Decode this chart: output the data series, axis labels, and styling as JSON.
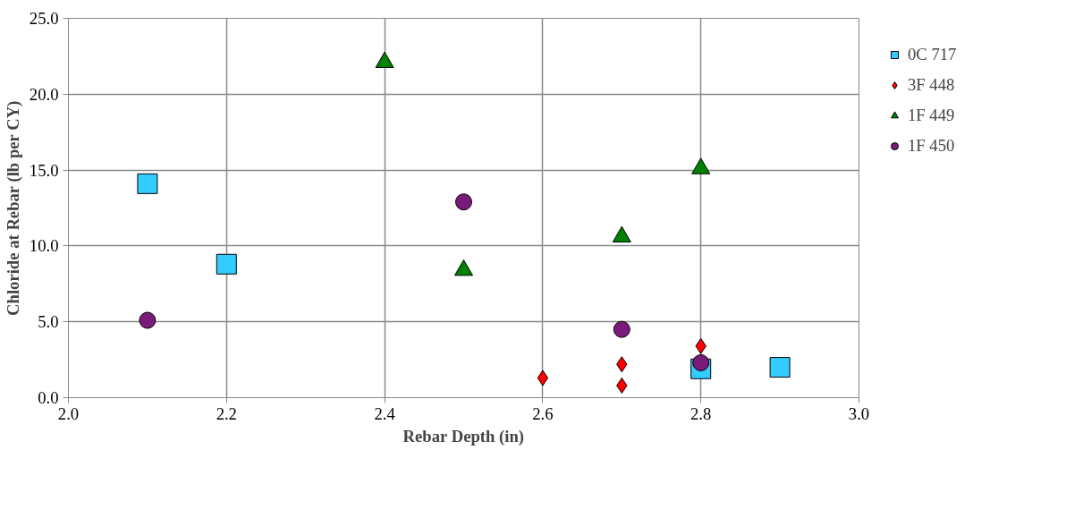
{
  "chart_data": {
    "type": "scatter",
    "xlabel": "Rebar Depth (in)",
    "ylabel": "Chloride at Rebar (lb per CY)",
    "xlim": [
      2.0,
      3.0
    ],
    "ylim": [
      0,
      25
    ],
    "xticks": [
      {
        "value": 2.0,
        "label": "2.0"
      },
      {
        "value": 2.2,
        "label": "2.2"
      },
      {
        "value": 2.4,
        "label": "2.4"
      },
      {
        "value": 2.6,
        "label": "2.6"
      },
      {
        "value": 2.8,
        "label": "2.8"
      },
      {
        "value": 3.0,
        "label": "3.0"
      }
    ],
    "yticks": [
      {
        "value": 0,
        "label": "0.0"
      },
      {
        "value": 5,
        "label": "5.0"
      },
      {
        "value": 10,
        "label": "10.0"
      },
      {
        "value": 15,
        "label": "15.0"
      },
      {
        "value": 20,
        "label": "20.0"
      },
      {
        "value": 25,
        "label": "25.0"
      }
    ],
    "grid": true,
    "legend": "right",
    "series": [
      {
        "name": "0C 717",
        "color": "#33ccff",
        "marker": "square",
        "x": [
          2.1,
          2.2,
          2.8,
          2.9
        ],
        "values": [
          14.1,
          8.8,
          1.9,
          2.0
        ]
      },
      {
        "name": "3F 448",
        "color": "#ff0000",
        "marker": "diamond",
        "x": [
          2.6,
          2.7,
          2.7,
          2.8
        ],
        "values": [
          1.3,
          0.8,
          2.2,
          3.4
        ]
      },
      {
        "name": "1F 449",
        "color": "#008000",
        "marker": "triangle",
        "x": [
          2.4,
          2.5,
          2.7,
          2.8
        ],
        "values": [
          22.1,
          8.4,
          10.6,
          15.1
        ]
      },
      {
        "name": "1F 450",
        "color": "#7a1a7a",
        "marker": "circle",
        "x": [
          2.1,
          2.5,
          2.7,
          2.8
        ],
        "values": [
          5.1,
          12.9,
          4.5,
          2.3
        ]
      }
    ]
  }
}
